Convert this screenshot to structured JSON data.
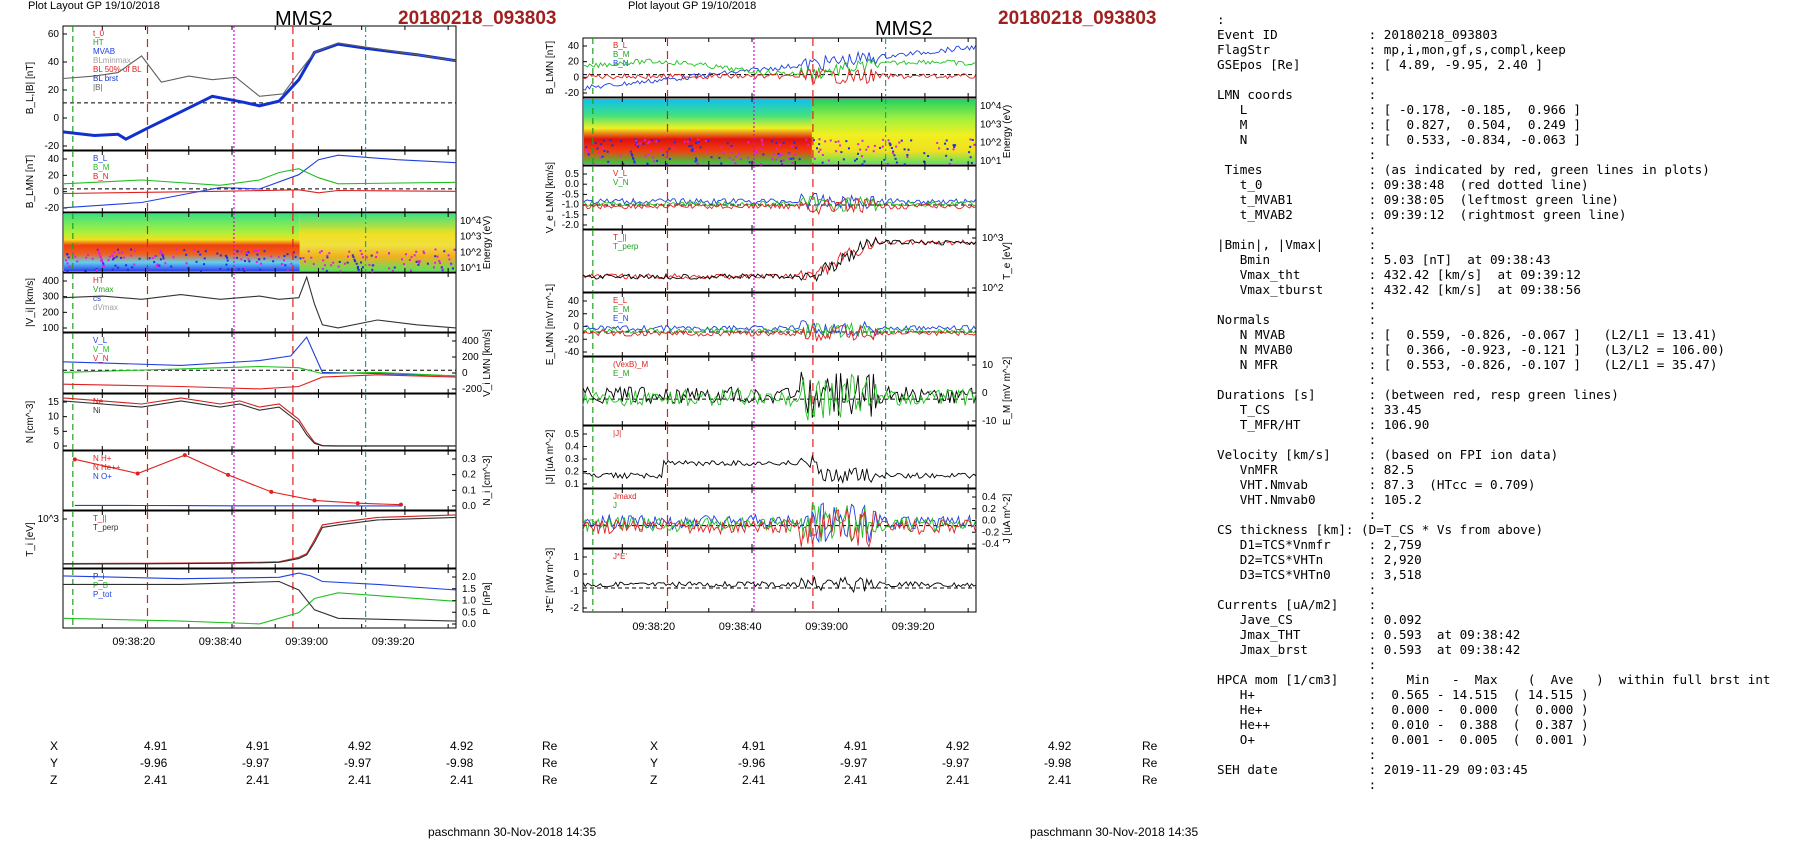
{
  "left_header": {
    "layout": "Plot Layout GP 19/10/2018",
    "title": "MMS2",
    "event": "20180218_093803"
  },
  "mid_header": {
    "layout": "Plot layout GP 19/10/2018",
    "title": "MMS2",
    "event": "20180218_093803"
  },
  "footers": {
    "left": "paschmann 30-Nov-2018 14:35",
    "mid": "paschmann 30-Nov-2018 14:35"
  },
  "time_ticks": [
    "09:38:20",
    "09:38:40",
    "09:39:00",
    "09:39:20"
  ],
  "position_table": {
    "rows": [
      {
        "label": "X",
        "values": [
          "4.91",
          "4.91",
          "4.92",
          "4.92"
        ],
        "unit": "Re"
      },
      {
        "label": "Y",
        "values": [
          "-9.96",
          "-9.97",
          "-9.97",
          "-9.98"
        ],
        "unit": "Re"
      },
      {
        "label": "Z",
        "values": [
          "2.41",
          "2.41",
          "2.41",
          "2.41"
        ],
        "unit": "Re"
      }
    ]
  },
  "info_lines": [
    ":",
    "Event ID            : 20180218_093803",
    "FlagStr             : mp,i,mon,gf,s,compl,keep",
    "GSEpos [Re]         : [ 4.89, -9.95, 2.40 ]",
    "                    :",
    "LMN coords          :",
    "   L                : [ -0.178, -0.185,  0.966 ]",
    "   M                : [  0.827,  0.504,  0.249 ]",
    "   N                : [  0.533, -0.834, -0.063 ]",
    "                    :",
    " Times              : (as indicated by red, green lines in plots)",
    "   t_0              : 09:38:48  (red dotted line)",
    "   t_MVAB1          : 09:38:05  (leftmost green line)",
    "   t_MVAB2          : 09:39:12  (rightmost green line)",
    "                    :",
    "|Bmin|, |Vmax|      :",
    "   Bmin             : 5.03 [nT]  at 09:38:43",
    "   Vmax_tht         : 432.42 [km/s]  at 09:39:12",
    "   Vmax_tburst      : 432.42 [km/s]  at 09:38:56",
    "                    :",
    "Normals             :",
    "   N MVAB           : [  0.559, -0.826, -0.067 ]   (L2/L1 = 13.41)",
    "   N MVAB0          : [  0.366, -0.923, -0.121 ]   (L3/L2 = 106.00)",
    "   N MFR            : [  0.553, -0.826, -0.107 ]   (L2/L1 = 35.47)",
    "                    :",
    "Durations [s]       : (between red, resp green lines)",
    "   T_CS             : 33.45",
    "   T_MFR/HT         : 106.90",
    "                    :",
    "Velocity [km/s]     : (based on FPI ion data)",
    "   VnMFR            : 82.5",
    "   VHT.Nmvab        : 87.3  (HTcc = 0.709)",
    "   VHT.Nmvab0       : 105.2",
    "                    :",
    "CS thickness [km]: (D=T_CS * Vs from above)",
    "   D1=TCS*Vnmfr     : 2,759",
    "   D2=TCS*VHTn      : 2,920",
    "   D3=TCS*VHTn0     : 3,518",
    "                    :",
    "Currents [uA/m2]    :",
    "   Jave_CS          : 0.092",
    "   Jmax_THT         : 0.593  at 09:38:42",
    "   Jmax_brst        : 0.593  at 09:38:42",
    "                    :",
    "HPCA mom [1/cm3]    :    Min   -  Max    (  Ave   )  within full brst int",
    "   H+               :  0.565 - 14.515  ( 14.515 )",
    "   He+              :  0.000 -  0.000  (  0.000 )",
    "   He++             :  0.010 -  0.388  (  0.387 )",
    "   O+               :  0.001 -  0.005  (  0.001 )",
    "                    :",
    "SEH date            : 2019-11-29 09:03:45",
    "                    :"
  ],
  "chart_data": [
    {
      "type": "line",
      "panel": "left-1",
      "ylabel": "B_L,|B| [nT]",
      "yticks": [
        "60",
        "40",
        "20",
        "0",
        "-20"
      ],
      "ylim": [
        -30,
        60
      ],
      "legend": [
        "t_0",
        "HT",
        "MVAB",
        "BLminmax",
        "BL 50% of BL",
        "BL brst",
        "|B|"
      ],
      "series": [
        {
          "name": "BL brst",
          "color": "#1030d0",
          "x": [
            0,
            0.08,
            0.14,
            0.16,
            0.22,
            0.3,
            0.38,
            0.46,
            0.5,
            0.55,
            0.6,
            0.64,
            0.7,
            0.78,
            0.9,
            1.0
          ],
          "y": [
            -22,
            -25,
            -24,
            -28,
            -18,
            -5,
            8,
            3,
            0,
            4,
            22,
            45,
            52,
            48,
            43,
            38
          ]
        },
        {
          "name": "|B|",
          "color": "#606060",
          "x": [
            0,
            0.08,
            0.14,
            0.2,
            0.25,
            0.32,
            0.38,
            0.44,
            0.5,
            0.56,
            0.6,
            0.64,
            0.7,
            0.8,
            1.0
          ],
          "y": [
            23,
            25,
            28,
            42,
            20,
            25,
            22,
            24,
            8,
            10,
            28,
            45,
            53,
            48,
            38
          ]
        }
      ]
    },
    {
      "type": "line",
      "panel": "left-2",
      "ylabel": "B_LMN [nT]",
      "yticks": [
        "40",
        "20",
        "0",
        "-20"
      ],
      "legend": [
        "B_L",
        "B_M",
        "B_N"
      ],
      "series": [
        {
          "name": "B_L",
          "color": "#2040e0",
          "x": [
            0,
            0.2,
            0.4,
            0.5,
            0.6,
            0.65,
            0.7,
            0.85,
            1.0
          ],
          "y": [
            -22,
            -15,
            5,
            3,
            22,
            42,
            48,
            42,
            38
          ]
        },
        {
          "name": "B_M",
          "color": "#20c020",
          "x": [
            0,
            0.2,
            0.4,
            0.5,
            0.55,
            0.6,
            0.65,
            0.7,
            1.0
          ],
          "y": [
            10,
            15,
            8,
            15,
            25,
            30,
            18,
            10,
            12
          ]
        },
        {
          "name": "B_N",
          "color": "#e02020",
          "x": [
            0,
            0.4,
            0.6,
            0.65,
            0.7,
            1.0
          ],
          "y": [
            -3,
            0,
            2,
            -2,
            1,
            0
          ]
        }
      ]
    },
    {
      "type": "heatmap",
      "panel": "left-3",
      "ylabel": "Energy (eV)",
      "yticks": [
        "10^4",
        "10^3",
        "10^2",
        "10^1"
      ]
    },
    {
      "type": "line",
      "panel": "left-4",
      "ylabel": "|V_i| [km/s]",
      "yticks": [
        "400",
        "300",
        "200",
        "100"
      ],
      "legend": [
        "HT",
        "Vmax",
        "cs",
        "dVmax"
      ],
      "series": [
        {
          "name": "|V_i|",
          "color": "#333333",
          "x": [
            0,
            0.1,
            0.2,
            0.3,
            0.4,
            0.5,
            0.55,
            0.6,
            0.62,
            0.64,
            0.66,
            0.7,
            0.8,
            0.9,
            1.0
          ],
          "y": [
            290,
            300,
            280,
            310,
            280,
            300,
            280,
            290,
            420,
            250,
            120,
            100,
            150,
            120,
            100
          ]
        }
      ]
    },
    {
      "type": "line",
      "panel": "left-5",
      "ylabel": "V_i LMN [km/s]",
      "yticks": [
        "400",
        "200",
        "0",
        "-200"
      ],
      "legend": [
        "V_L",
        "V_M",
        "V_N"
      ],
      "series": [
        {
          "name": "V_L",
          "color": "#2040e0",
          "x": [
            0,
            0.3,
            0.5,
            0.58,
            0.62,
            0.66,
            0.8,
            1.0
          ],
          "y": [
            150,
            120,
            160,
            200,
            360,
            60,
            50,
            30
          ]
        },
        {
          "name": "V_M",
          "color": "#20c020",
          "x": [
            0,
            0.3,
            0.5,
            0.6,
            0.66,
            0.8,
            1.0
          ],
          "y": [
            60,
            90,
            110,
            100,
            50,
            60,
            30
          ]
        },
        {
          "name": "V_N",
          "color": "#e02020",
          "x": [
            0,
            0.3,
            0.5,
            0.6,
            0.66,
            0.8,
            1.0
          ],
          "y": [
            -40,
            -60,
            -80,
            -60,
            20,
            40,
            20
          ]
        }
      ]
    },
    {
      "type": "line",
      "panel": "left-6",
      "ylabel": "N [cm^-3]",
      "yticks": [
        "15",
        "10",
        "5",
        "0"
      ],
      "legend": [
        "Ne",
        "Ni"
      ],
      "series": [
        {
          "name": "Ne",
          "color": "#d02020",
          "x": [
            0,
            0.1,
            0.2,
            0.3,
            0.4,
            0.45,
            0.5,
            0.55,
            0.6,
            0.62,
            0.64,
            0.66,
            0.7,
            1.0
          ],
          "y": [
            16,
            15,
            14,
            16,
            14,
            15,
            13,
            14,
            9,
            5,
            1.5,
            0.5,
            0.4,
            0.4
          ]
        },
        {
          "name": "Ni",
          "color": "#303030",
          "x": [
            0,
            0.1,
            0.2,
            0.3,
            0.4,
            0.45,
            0.5,
            0.55,
            0.6,
            0.62,
            0.64,
            0.66,
            0.7,
            1.0
          ],
          "y": [
            15,
            14,
            13,
            15,
            13,
            14,
            12,
            13,
            8,
            4,
            1.2,
            0.4,
            0.3,
            0.3
          ]
        }
      ]
    },
    {
      "type": "line",
      "panel": "left-7",
      "ylabel": "N_i [cm^-3]",
      "yticks": [
        "0.3",
        "0.2",
        "0.1",
        "0.0"
      ],
      "legend": [
        "N H+",
        "N He++",
        "N O+"
      ],
      "series": [
        {
          "name": "N He++",
          "color": "#e02020",
          "x": [
            0.03,
            0.19,
            0.31,
            0.42,
            0.53,
            0.64,
            0.75,
            0.86
          ],
          "y": [
            0.33,
            0.23,
            0.36,
            0.22,
            0.1,
            0.04,
            0.02,
            0.01
          ]
        },
        {
          "name": "N O+",
          "color": "#2040e0",
          "x": [
            0.03,
            0.19,
            0.31,
            0.42,
            0.53,
            0.64,
            0.75,
            0.86
          ],
          "y": [
            0.005,
            0.004,
            0.003,
            0.002,
            0.002,
            0.002,
            0.001,
            0.001
          ]
        }
      ]
    },
    {
      "type": "line",
      "panel": "left-8",
      "ylabel": "T_i [eV]",
      "yticks": [
        "10^3"
      ],
      "legend": [
        "T_||",
        "T_perp"
      ],
      "series": [
        {
          "name": "T_||",
          "color": "#d02020",
          "x": [
            0,
            0.2,
            0.4,
            0.5,
            0.55,
            0.6,
            0.62,
            0.64,
            0.66,
            0.7,
            0.8,
            1.0
          ],
          "y": [
            250,
            260,
            280,
            300,
            320,
            500,
            650,
            1200,
            1800,
            1900,
            2100,
            2200
          ]
        },
        {
          "name": "T_perp",
          "color": "#303030",
          "x": [
            0,
            0.2,
            0.4,
            0.5,
            0.55,
            0.6,
            0.62,
            0.64,
            0.66,
            0.7,
            0.8,
            1.0
          ],
          "y": [
            230,
            240,
            260,
            280,
            300,
            450,
            600,
            1100,
            1700,
            1800,
            2000,
            2100
          ]
        }
      ]
    },
    {
      "type": "line",
      "panel": "left-9",
      "ylabel": "P [nPa]",
      "yticks": [
        "2.0",
        "1.5",
        "1.0",
        "0.5",
        "0.0"
      ],
      "legend": [
        "P_i",
        "P_B",
        "P_tot"
      ],
      "series": [
        {
          "name": "P_tot",
          "color": "#2040e0",
          "x": [
            0,
            0.3,
            0.55,
            0.6,
            0.63,
            0.66,
            0.8,
            1.0
          ],
          "y": [
            1.8,
            1.7,
            1.75,
            1.9,
            1.8,
            1.6,
            1.5,
            1.3
          ]
        },
        {
          "name": "P_B",
          "color": "#20c020",
          "x": [
            0,
            0.3,
            0.5,
            0.6,
            0.64,
            0.7,
            1.0
          ],
          "y": [
            0.3,
            0.2,
            0.1,
            0.5,
            1.0,
            1.2,
            0.9
          ]
        },
        {
          "name": "P_i",
          "color": "#303030",
          "x": [
            0,
            0.3,
            0.55,
            0.6,
            0.64,
            0.7,
            1.0
          ],
          "y": [
            1.5,
            1.5,
            1.6,
            1.3,
            0.6,
            0.3,
            0.2
          ]
        }
      ]
    },
    {
      "type": "line",
      "panel": "mid-1",
      "ylabel": "B_LMN [nT]",
      "yticks": [
        "40",
        "20",
        "0",
        "-20"
      ],
      "legend": [
        "B_L",
        "B_M",
        "B_N"
      ]
    },
    {
      "type": "heatmap",
      "panel": "mid-2",
      "ylabel": "Energy (eV)",
      "yticks": [
        "10^4",
        "10^3",
        "10^2",
        "10^1"
      ]
    },
    {
      "type": "line",
      "panel": "mid-3",
      "ylabel": "V_e LMN [km/s]",
      "yticks": [
        "0.5",
        "0.0",
        "-0.5",
        "-1.0",
        "-1.5",
        "-2.0"
      ],
      "legend": [
        "V_L",
        "V_N"
      ]
    },
    {
      "type": "line",
      "panel": "mid-4",
      "ylabel": "T_e [eV]",
      "yticks": [
        "10^3",
        "10^2"
      ],
      "legend": [
        "T_||",
        "T_perp"
      ]
    },
    {
      "type": "line",
      "panel": "mid-5",
      "ylabel": "E_LMN [mV m^-1]",
      "yticks": [
        "40",
        "20",
        "0",
        "-20",
        "-40"
      ],
      "legend": [
        "E_L",
        "E_M",
        "E_N"
      ]
    },
    {
      "type": "line",
      "panel": "mid-6",
      "ylabel": "E_M [mV m^-2]",
      "yticks": [
        "10",
        "0",
        "-10"
      ],
      "legend": [
        "(VexB)_M",
        "E_M"
      ]
    },
    {
      "type": "line",
      "panel": "mid-7",
      "ylabel": "|J| [uA m^-2]",
      "yticks": [
        "0.5",
        "0.4",
        "0.3",
        "0.2",
        "0.1"
      ],
      "legend": [
        "|J|"
      ]
    },
    {
      "type": "line",
      "panel": "mid-8",
      "ylabel": "J [uA m^-2]",
      "yticks": [
        "0.4",
        "0.2",
        "0.0",
        "-0.2",
        "-0.4"
      ],
      "legend": [
        "Jmaxd",
        "J"
      ]
    },
    {
      "type": "line",
      "panel": "mid-9",
      "ylabel": "J*E' [nW m^-3]",
      "yticks": [
        "1",
        "0",
        "-1",
        "-2"
      ],
      "legend": [
        "J*E'"
      ]
    }
  ]
}
